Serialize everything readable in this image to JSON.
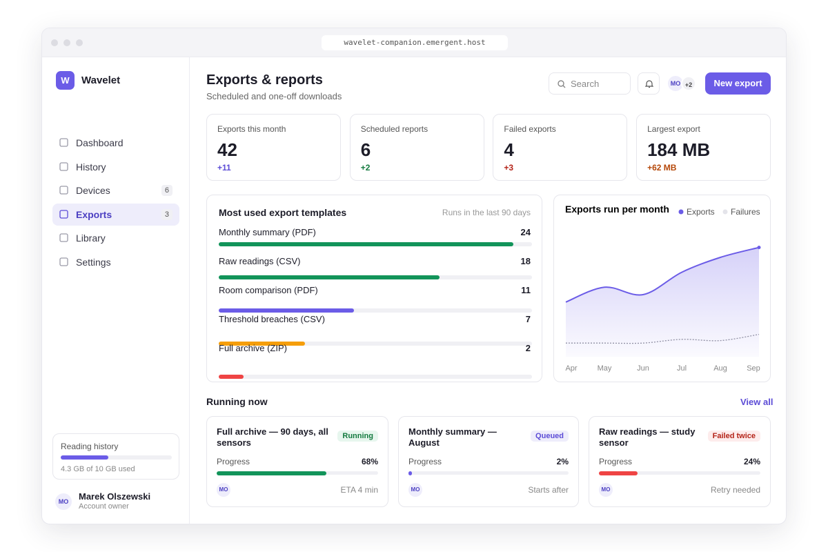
{
  "browser": {
    "url": "wavelet-companion.emergent.host"
  },
  "sidebar": {
    "logo": "W",
    "brand": "Wavelet",
    "nav": [
      {
        "label": "Dashboard"
      },
      {
        "label": "History"
      },
      {
        "label": "Devices",
        "badge": 6
      },
      {
        "label": "Exports",
        "badge": 3,
        "active": true
      },
      {
        "label": "Library"
      },
      {
        "label": "Settings"
      }
    ],
    "storage": {
      "title": "Reading history",
      "used": 4.3,
      "total": 10,
      "label": "4.3 GB of 10 GB used",
      "color": "#6b5ce7"
    },
    "user": {
      "initials": "MO",
      "name": "Marek Olszewski",
      "role": "Account owner"
    }
  },
  "header": {
    "title": "Exports & reports",
    "subtitle": "Scheduled and one-off downloads",
    "search": "Search",
    "avatars": [
      "MO",
      "+2"
    ],
    "button": "New export"
  },
  "stats": [
    {
      "label": "Exports this month",
      "value": 42,
      "delta": "+11",
      "color": "#5b4bd6"
    },
    {
      "label": "Scheduled reports",
      "value": 6,
      "delta": "+2",
      "color": "#137a3f"
    },
    {
      "label": "Failed exports",
      "value": 4,
      "delta": "+3",
      "color": "#b42318"
    },
    {
      "label": "Largest export",
      "value": "184 MB",
      "delta": "+62 MB",
      "color": "#b54708"
    }
  ],
  "templates": {
    "title": "Most used export templates",
    "note": "Runs in the last 90 days",
    "categories": [
      "Monthly summary (PDF)",
      "Raw readings (CSV)",
      "Room comparison (PDF)",
      "Threshold breaches (CSV)",
      "Full archive (ZIP)"
    ],
    "values": [
      24,
      18,
      11,
      7,
      2
    ],
    "colors": [
      "#12945a",
      "#12945a",
      "#6b5ce7",
      "#f59e0b",
      "#ef4444"
    ],
    "xlim": [
      0,
      25.5
    ]
  },
  "chart_data": {
    "type": "line",
    "title": "Exports run per month",
    "categories": [
      "Apr",
      "May",
      "Jun",
      "Jul",
      "Aug",
      "Sep"
    ],
    "series": [
      {
        "name": "Exports",
        "color": "#6b5ce7",
        "values": [
          22,
          28,
          25,
          34,
          40,
          44
        ]
      },
      {
        "name": "Failures",
        "color": "#8f8fa3",
        "values": [
          5.5,
          5.5,
          5.5,
          7,
          6.5,
          9
        ]
      }
    ],
    "ylim": [
      0,
      50
    ]
  },
  "running": {
    "title": "Running now",
    "link": "View all",
    "progress_label": "Progress",
    "jobs": [
      {
        "title": "Full archive — 90 days, all sensors",
        "status": "Running",
        "status_bg": "#e7f6ee",
        "status_color": "#137a3f",
        "progress": 68,
        "progress_label": "68%",
        "color": "#12945a",
        "avatar": "MO",
        "footer": "ETA 4 min"
      },
      {
        "title": "Monthly summary — August",
        "status": "Queued",
        "status_bg": "#eeedfb",
        "status_color": "#5b4bd6",
        "progress": 2,
        "progress_label": "2%",
        "color": "#6b5ce7",
        "avatar": "MO",
        "footer": "Starts after"
      },
      {
        "title": "Raw readings — study sensor",
        "status": "Failed twice",
        "status_bg": "#fdecec",
        "status_color": "#b42318",
        "progress": 24,
        "progress_label": "24%",
        "color": "#ef4444",
        "avatar": "MO",
        "footer": "Retry needed"
      }
    ]
  }
}
